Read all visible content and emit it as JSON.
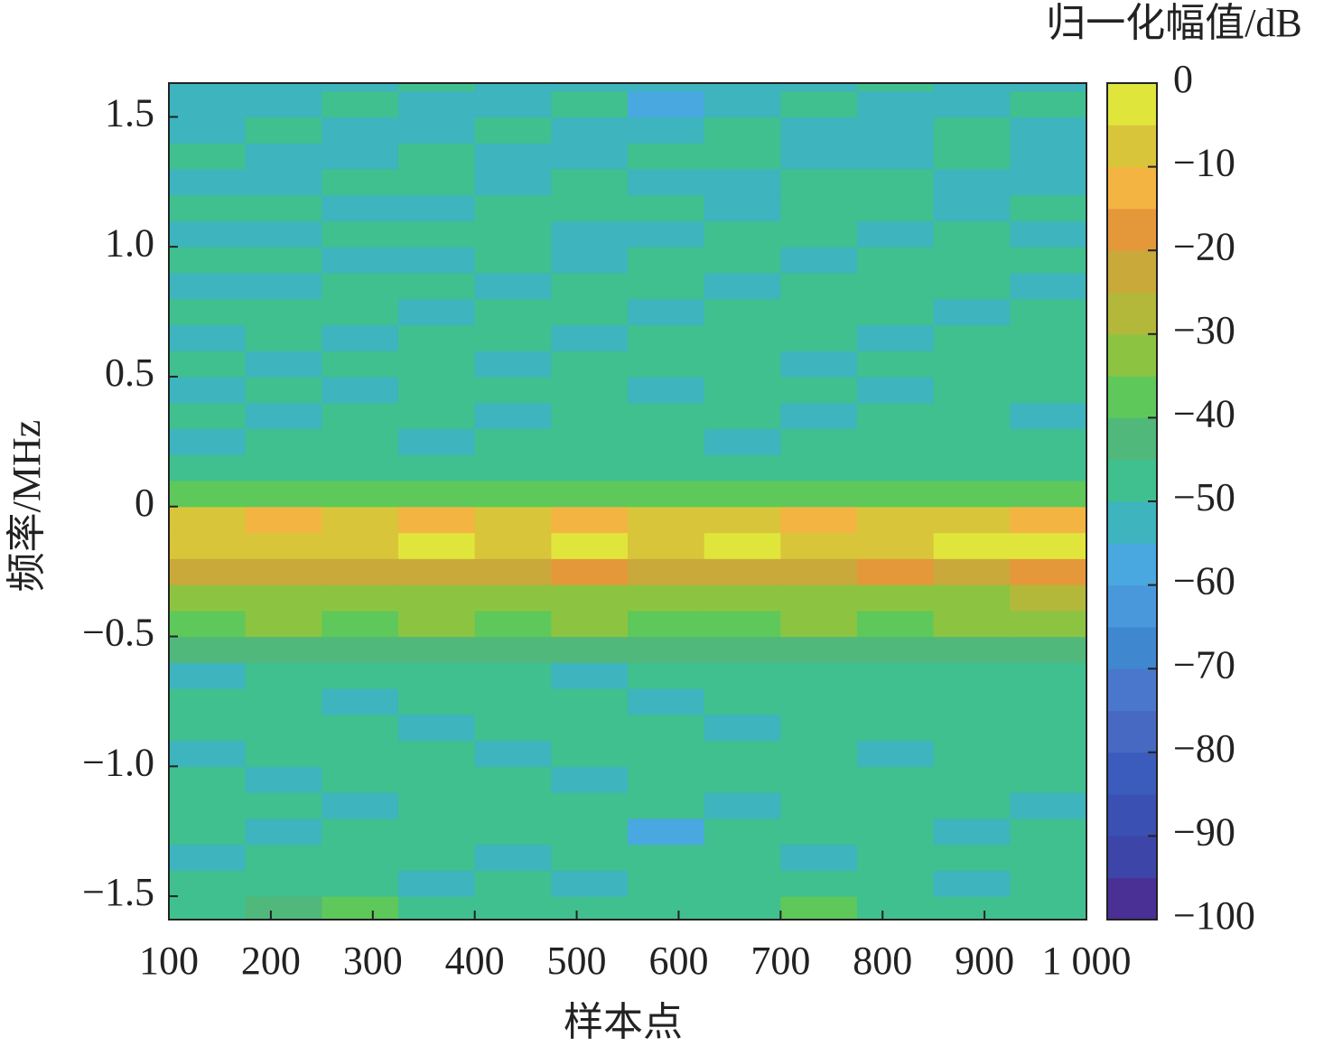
{
  "chart_data": {
    "type": "heatmap",
    "xlabel": "样本点",
    "ylabel": "频率/MHz",
    "colorbar_label": "归一化幅值/dB",
    "xlim": [
      100,
      1000
    ],
    "ylim": [
      -1.59,
      1.63
    ],
    "zlim": [
      -100,
      0
    ],
    "xticks": [
      100,
      200,
      300,
      400,
      500,
      600,
      700,
      800,
      900,
      {
        "value": 1000,
        "label": "1 000"
      }
    ],
    "yticks": [
      {
        "value": 1.5,
        "label": "1.5"
      },
      {
        "value": 1.0,
        "label": "1.0"
      },
      {
        "value": 0.5,
        "label": "0.5"
      },
      0,
      {
        "value": -0.5,
        "label": "−0.5"
      },
      {
        "value": -1.0,
        "label": "−1.0"
      },
      {
        "value": -1.5,
        "label": "−1.5"
      }
    ],
    "zticks": [
      0,
      {
        "value": -10,
        "label": "−10"
      },
      {
        "value": -20,
        "label": "−20"
      },
      {
        "value": -30,
        "label": "−30"
      },
      {
        "value": -40,
        "label": "−40"
      },
      {
        "value": -50,
        "label": "−50"
      },
      {
        "value": -60,
        "label": "−60"
      },
      {
        "value": -70,
        "label": "−70"
      },
      {
        "value": -80,
        "label": "−80"
      },
      {
        "value": -90,
        "label": "−90"
      },
      {
        "value": -100,
        "label": "−100"
      }
    ],
    "colormap": [
      "#4a2f95",
      "#3d45a8",
      "#3a50b2",
      "#3b5bbd",
      "#4769c2",
      "#4a77cc",
      "#3f88d0",
      "#4a98dc",
      "#4aa8e0",
      "#3db4be",
      "#40c08e",
      "#4fb87a",
      "#5fc85a",
      "#8cc441",
      "#b3b83a",
      "#c9a93a",
      "#e4983a",
      "#f4b442",
      "#d8c53a",
      "#e0e53c"
    ],
    "x_bins": [
      100,
      175,
      250,
      325,
      400,
      475,
      550,
      625,
      700,
      775,
      850,
      925,
      1000
    ],
    "y_bins": [
      -1.59,
      -1.5,
      -1.4,
      -1.3,
      -1.2,
      -1.1,
      -1.0,
      -0.9,
      -0.8,
      -0.7,
      -0.6,
      -0.5,
      -0.4,
      -0.3,
      -0.2,
      -0.1,
      0,
      0.1,
      0.2,
      0.3,
      0.4,
      0.5,
      0.6,
      0.7,
      0.8,
      0.9,
      1.0,
      1.1,
      1.2,
      1.3,
      1.4,
      1.5,
      1.6,
      1.63
    ],
    "values": [
      [
        -47,
        -44,
        -38,
        -49,
        -46,
        -50,
        -47,
        -48,
        -37,
        -46,
        -49,
        -47
      ],
      [
        -48,
        -50,
        -46,
        -51,
        -49,
        -52,
        -48,
        -50,
        -47,
        -49,
        -51,
        -48
      ],
      [
        -51,
        -48,
        -50,
        -47,
        -52,
        -49,
        -50,
        -48,
        -51,
        -47,
        -49,
        -50
      ],
      [
        -49,
        -52,
        -48,
        -50,
        -47,
        -50,
        -56,
        -49,
        -50,
        -48,
        -52,
        -49
      ],
      [
        -50,
        -48,
        -51,
        -49,
        -50,
        -46,
        -49,
        -51,
        -48,
        -50,
        -47,
        -51
      ],
      [
        -48,
        -51,
        -47,
        -50,
        -49,
        -51,
        -48,
        -47,
        -50,
        -49,
        -50,
        -46
      ],
      [
        -52,
        -49,
        -50,
        -48,
        -51,
        -47,
        -50,
        -49,
        -47,
        -51,
        -48,
        -49
      ],
      [
        -49,
        -50,
        -48,
        -51,
        -48,
        -50,
        -49,
        -52,
        -49,
        -48,
        -50,
        -47
      ],
      [
        -50,
        -47,
        -51,
        -49,
        -50,
        -48,
        -51,
        -48,
        -50,
        -47,
        -49,
        -50
      ],
      [
        -55,
        -50,
        -49,
        -48,
        -50,
        -51,
        -48,
        -50,
        -49,
        -50,
        -46,
        -49
      ],
      [
        -44,
        -45,
        -43,
        -44,
        -42,
        -45,
        -44,
        -43,
        -45,
        -44,
        -43,
        -42
      ],
      [
        -36,
        -35,
        -37,
        -34,
        -36,
        -35,
        -37,
        -36,
        -34,
        -36,
        -35,
        -33
      ],
      [
        -33,
        -32,
        -34,
        -31,
        -33,
        -32,
        -33,
        -31,
        -32,
        -33,
        -32,
        -30
      ],
      [
        -21,
        -22,
        -24,
        -21,
        -23,
        -20,
        -22,
        -21,
        -23,
        -20,
        -22,
        -19
      ],
      [
        -7,
        -8,
        -6,
        -5,
        -6,
        -5,
        -6,
        -5,
        -7,
        -6,
        -5,
        -4
      ],
      [
        -9,
        -12,
        -10,
        -14,
        -8,
        -12,
        -9,
        -10,
        -11,
        -9,
        -10,
        -12
      ],
      [
        -37,
        -38,
        -36,
        -38,
        -37,
        -39,
        -36,
        -38,
        -37,
        -36,
        -38,
        -37
      ],
      [
        -48,
        -47,
        -49,
        -48,
        -47,
        -48,
        -49,
        -47,
        -48,
        -49,
        -47,
        -48
      ],
      [
        -51,
        -49,
        -50,
        -52,
        -48,
        -50,
        -49,
        -51,
        -50,
        -48,
        -50,
        -49
      ],
      [
        -50,
        -52,
        -48,
        -50,
        -51,
        -49,
        -50,
        -48,
        -52,
        -50,
        -49,
        -51
      ],
      [
        -52,
        -50,
        -51,
        -49,
        -50,
        -47,
        -51,
        -50,
        -49,
        -51,
        -48,
        -50
      ],
      [
        -49,
        -51,
        -50,
        -48,
        -52,
        -50,
        -49,
        -46,
        -51,
        -49,
        -50,
        -48
      ],
      [
        -51,
        -50,
        -52,
        -50,
        -49,
        -51,
        -50,
        -49,
        -50,
        -52,
        -46,
        -50
      ],
      [
        -50,
        -48,
        -50,
        -51,
        -50,
        -49,
        -52,
        -50,
        -48,
        -50,
        -51,
        -49
      ],
      [
        -52,
        -51,
        -49,
        -50,
        -51,
        -50,
        -48,
        -51,
        -50,
        -49,
        -50,
        -51
      ],
      [
        -50,
        -49,
        -51,
        -52,
        -48,
        -51,
        -50,
        -49,
        -51,
        -50,
        -48,
        -50
      ],
      [
        -51,
        -52,
        -50,
        -49,
        -50,
        -52,
        -51,
        -50,
        -49,
        -51,
        -50,
        -52
      ],
      [
        -49,
        -50,
        -52,
        -51,
        -50,
        -49,
        -50,
        -52,
        -50,
        -48,
        -51,
        -50
      ],
      [
        -52,
        -51,
        -50,
        -49,
        -51,
        -50,
        -52,
        -51,
        -49,
        -50,
        -52,
        -51
      ],
      [
        -50,
        -52,
        -51,
        -50,
        -52,
        -51,
        -49,
        -50,
        -51,
        -52,
        -50,
        -51
      ],
      [
        -51,
        -50,
        -52,
        -51,
        -50,
        -53,
        -51,
        -50,
        -52,
        -51,
        -50,
        -52
      ],
      [
        -52,
        -51,
        -50,
        -52,
        -51,
        -50,
        -57,
        -52,
        -50,
        -51,
        -52,
        -50
      ],
      [
        -51,
        -52,
        -51,
        -50,
        -52,
        -51,
        -52,
        -51,
        -52,
        -50,
        -51,
        -52
      ]
    ]
  }
}
